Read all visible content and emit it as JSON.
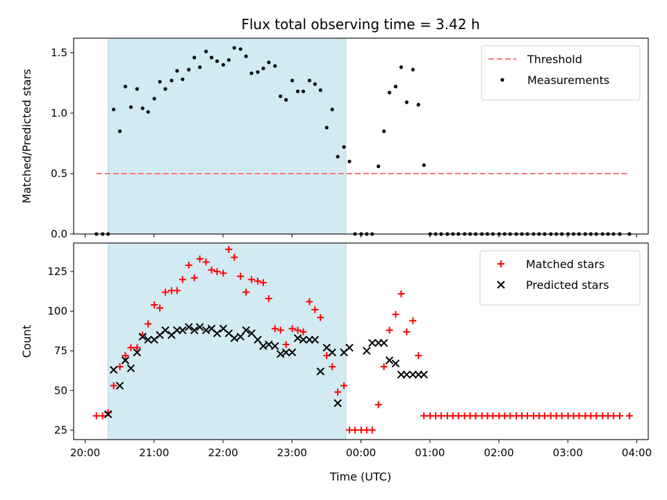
{
  "chart_data": {
    "type": "scatter",
    "title": "Flux total observing time = 3.42 h",
    "xlabel": "Time (UTC)",
    "xticks": [
      {
        "t": 0.167,
        "label": "20:00"
      },
      {
        "t": 1.167,
        "label": "21:00"
      },
      {
        "t": 2.167,
        "label": "22:00"
      },
      {
        "t": 3.167,
        "label": "23:00"
      },
      {
        "t": 4.167,
        "label": "00:00"
      },
      {
        "t": 5.167,
        "label": "01:00"
      },
      {
        "t": 6.167,
        "label": "02:00"
      },
      {
        "t": 7.167,
        "label": "03:00"
      },
      {
        "t": 8.167,
        "label": "04:00"
      }
    ],
    "xlim": [
      0,
      8.333
    ],
    "observing_window": {
      "start": 0.5,
      "end": 3.95,
      "color": "#add8e6"
    },
    "panels": [
      {
        "ylabel": "Matched/Predicted stars",
        "ylim": [
          0,
          1.62
        ],
        "yticks": [
          {
            "v": 0.0,
            "label": "0.0"
          },
          {
            "v": 0.5,
            "label": "0.5"
          },
          {
            "v": 1.0,
            "label": "1.0"
          },
          {
            "v": 1.5,
            "label": "1.5"
          }
        ],
        "threshold": {
          "value": 0.5,
          "x_start": 0.33,
          "x_end": 8.06,
          "color": "#ff7777"
        },
        "legend": [
          {
            "label": "Threshold",
            "kind": "dash",
            "color": "#ff7777"
          },
          {
            "label": "Measurements",
            "kind": "dot",
            "color": "#000000"
          }
        ],
        "series": [
          {
            "name": "Measurements",
            "marker": "dot",
            "color": "#000000",
            "x": [
              0.33,
              0.42,
              0.5,
              0.58,
              0.67,
              0.75,
              0.83,
              0.92,
              1.0,
              1.08,
              1.17,
              1.25,
              1.33,
              1.42,
              1.5,
              1.58,
              1.67,
              1.75,
              1.83,
              1.92,
              2.0,
              2.08,
              2.17,
              2.25,
              2.33,
              2.42,
              2.5,
              2.58,
              2.67,
              2.75,
              2.83,
              2.92,
              3.0,
              3.08,
              3.17,
              3.25,
              3.33,
              3.42,
              3.5,
              3.58,
              3.67,
              3.75,
              3.83,
              3.92,
              4.0,
              4.08,
              4.17,
              4.25,
              4.33,
              4.42,
              4.5,
              4.58,
              4.67,
              4.75,
              4.83,
              4.92,
              5.0,
              5.08,
              5.17,
              5.25,
              5.33,
              5.42,
              5.5,
              5.58,
              5.67,
              5.75,
              5.83,
              5.92,
              6.0,
              6.08,
              6.17,
              6.25,
              6.33,
              6.42,
              6.5,
              6.58,
              6.67,
              6.75,
              6.83,
              6.92,
              7.0,
              7.08,
              7.17,
              7.25,
              7.33,
              7.42,
              7.5,
              7.58,
              7.67,
              7.75,
              7.83,
              7.92,
              8.06
            ],
            "y": [
              0,
              0,
              0,
              1.03,
              0.85,
              1.22,
              1.05,
              1.2,
              1.04,
              1.01,
              1.12,
              1.26,
              1.2,
              1.27,
              1.35,
              1.28,
              1.36,
              1.46,
              1.38,
              1.51,
              1.46,
              1.43,
              1.4,
              1.44,
              1.54,
              1.53,
              1.47,
              1.33,
              1.34,
              1.37,
              1.42,
              1.39,
              1.14,
              1.11,
              1.27,
              1.18,
              1.18,
              1.27,
              1.24,
              1.19,
              0.88,
              1.03,
              0.64,
              0.72,
              0.6,
              0,
              0,
              0,
              0,
              0.56,
              0.85,
              1.17,
              1.22,
              1.38,
              1.09,
              1.36,
              1.07,
              0.57,
              0,
              0,
              0,
              0,
              0,
              0,
              0,
              0,
              0,
              0,
              0,
              0,
              0,
              0,
              0,
              0,
              0,
              0,
              0,
              0,
              0,
              0,
              0,
              0,
              0,
              0,
              0,
              0,
              0,
              0,
              0,
              0,
              0,
              0,
              0
            ]
          }
        ]
      },
      {
        "ylabel": "Count",
        "ylim": [
          19,
          143
        ],
        "yticks": [
          {
            "v": 25,
            "label": "25"
          },
          {
            "v": 50,
            "label": "50"
          },
          {
            "v": 75,
            "label": "75"
          },
          {
            "v": 100,
            "label": "100"
          },
          {
            "v": 125,
            "label": "125"
          }
        ],
        "legend": [
          {
            "label": "Matched stars",
            "kind": "plus",
            "color": "#ff0000"
          },
          {
            "label": "Predicted stars",
            "kind": "cross",
            "color": "#000000"
          }
        ],
        "series": [
          {
            "name": "Matched stars",
            "marker": "plus",
            "color": "#ff0000",
            "x": [
              0.33,
              0.42,
              0.5,
              0.58,
              0.67,
              0.75,
              0.83,
              0.92,
              1.0,
              1.08,
              1.17,
              1.25,
              1.33,
              1.42,
              1.5,
              1.58,
              1.67,
              1.75,
              1.83,
              1.92,
              2.0,
              2.08,
              2.17,
              2.25,
              2.33,
              2.42,
              2.5,
              2.58,
              2.67,
              2.75,
              2.83,
              2.92,
              3.0,
              3.08,
              3.17,
              3.25,
              3.33,
              3.42,
              3.5,
              3.58,
              3.67,
              3.75,
              3.83,
              3.92,
              4.0,
              4.08,
              4.17,
              4.25,
              4.33,
              4.42,
              4.5,
              4.58,
              4.67,
              4.75,
              4.83,
              4.92,
              5.0,
              5.08,
              5.17,
              5.25,
              5.33,
              5.42,
              5.5,
              5.58,
              5.67,
              5.75,
              5.83,
              5.92,
              6.0,
              6.08,
              6.17,
              6.25,
              6.33,
              6.42,
              6.5,
              6.58,
              6.67,
              6.75,
              6.83,
              6.92,
              7.0,
              7.08,
              7.17,
              7.25,
              7.33,
              7.42,
              7.5,
              7.58,
              7.67,
              7.75,
              7.83,
              7.92,
              8.06
            ],
            "y": [
              34,
              34,
              36,
              53,
              65,
              72,
              77,
              77,
              85,
              92,
              104,
              102,
              112,
              113,
              113,
              120,
              129,
              121,
              133,
              131,
              126,
              125,
              124,
              139,
              134,
              122,
              112,
              120,
              119,
              118,
              108,
              89,
              88,
              79,
              89,
              88,
              87,
              106,
              101,
              96,
              72,
              65,
              49,
              53,
              25,
              25,
              25,
              25,
              25,
              41,
              65,
              88,
              98,
              111,
              87,
              94,
              72,
              34,
              34,
              34,
              34,
              34,
              34,
              34,
              34,
              34,
              34,
              34,
              34,
              34,
              34,
              34,
              34,
              34,
              34,
              34,
              34,
              34,
              34,
              34,
              34,
              34,
              34,
              34,
              34,
              34,
              34,
              34,
              34,
              34,
              34,
              34,
              34
            ]
          },
          {
            "name": "Predicted stars",
            "marker": "cross",
            "color": "#000000",
            "x": [
              0.5,
              0.58,
              0.67,
              0.75,
              0.83,
              0.92,
              1.0,
              1.08,
              1.17,
              1.25,
              1.33,
              1.42,
              1.5,
              1.58,
              1.67,
              1.75,
              1.83,
              1.92,
              2.0,
              2.08,
              2.17,
              2.25,
              2.33,
              2.42,
              2.5,
              2.58,
              2.67,
              2.75,
              2.83,
              2.92,
              3.0,
              3.08,
              3.17,
              3.25,
              3.33,
              3.42,
              3.5,
              3.58,
              3.67,
              3.75,
              3.83,
              3.92,
              4.0,
              4.25,
              4.33,
              4.42,
              4.5,
              4.58,
              4.67,
              4.75,
              4.83,
              4.92,
              5.0,
              5.08
            ],
            "y": [
              35,
              63,
              53,
              69,
              64,
              74,
              84,
              82,
              82,
              85,
              88,
              85,
              88,
              88,
              90,
              88,
              90,
              88,
              89,
              86,
              89,
              86,
              83,
              84,
              88,
              86,
              82,
              78,
              79,
              78,
              73,
              74,
              74,
              83,
              82,
              82,
              82,
              62,
              77,
              74,
              42,
              74,
              77,
              75,
              80,
              80,
              80,
              69,
              67,
              60,
              60,
              60,
              60,
              60
            ]
          }
        ]
      }
    ]
  }
}
